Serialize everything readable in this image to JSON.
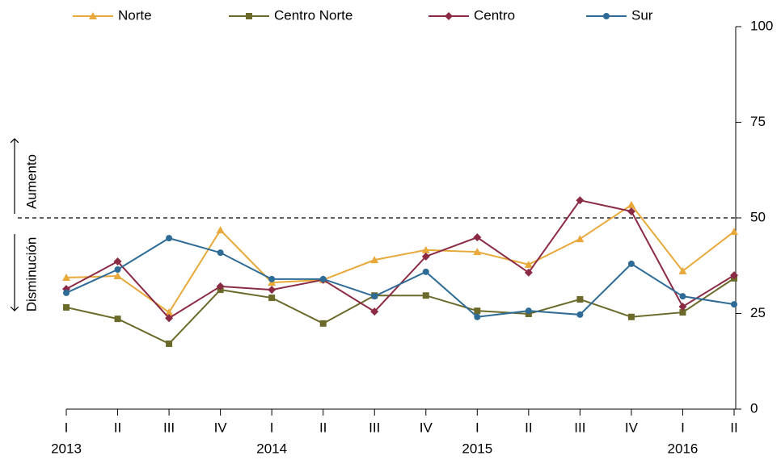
{
  "chart_data": {
    "type": "line",
    "categories": [
      "I",
      "II",
      "III",
      "IV",
      "I",
      "II",
      "III",
      "IV",
      "I",
      "II",
      "III",
      "IV",
      "I",
      "II"
    ],
    "year_labels": [
      "2013",
      "2014",
      "2015",
      "2016"
    ],
    "series": [
      {
        "name": "Norte",
        "color": "#e8a83a",
        "marker": "triangle",
        "values": [
          34.4,
          34.8,
          25.3,
          46.8,
          33.1,
          33.8,
          39.0,
          41.6,
          41.1,
          37.8,
          44.5,
          53.4,
          36.1,
          46.4
        ]
      },
      {
        "name": "Centro Norte",
        "color": "#6b6a2b",
        "marker": "square",
        "values": [
          26.6,
          23.6,
          17.1,
          31.2,
          29.1,
          22.4,
          29.7,
          29.7,
          25.7,
          24.9,
          28.7,
          24.1,
          25.3,
          34.2
        ]
      },
      {
        "name": "Centro",
        "color": "#8b2a44",
        "marker": "diamond",
        "values": [
          31.4,
          38.6,
          23.8,
          32.1,
          31.2,
          33.8,
          25.5,
          39.9,
          44.9,
          35.7,
          54.6,
          51.7,
          26.8,
          35.0
        ]
      },
      {
        "name": "Sur",
        "color": "#2e6b96",
        "marker": "circle",
        "values": [
          30.4,
          36.5,
          44.7,
          40.9,
          34.0,
          34.0,
          29.5,
          35.9,
          24.1,
          25.7,
          24.7,
          38.0,
          29.5,
          27.4
        ]
      }
    ],
    "ylim": [
      0,
      100
    ],
    "yticks": [
      0,
      25,
      50,
      75,
      100
    ],
    "y_axis_side": "right",
    "reference_line": 50,
    "annotations": [
      "Aumento",
      "Disminución"
    ]
  }
}
